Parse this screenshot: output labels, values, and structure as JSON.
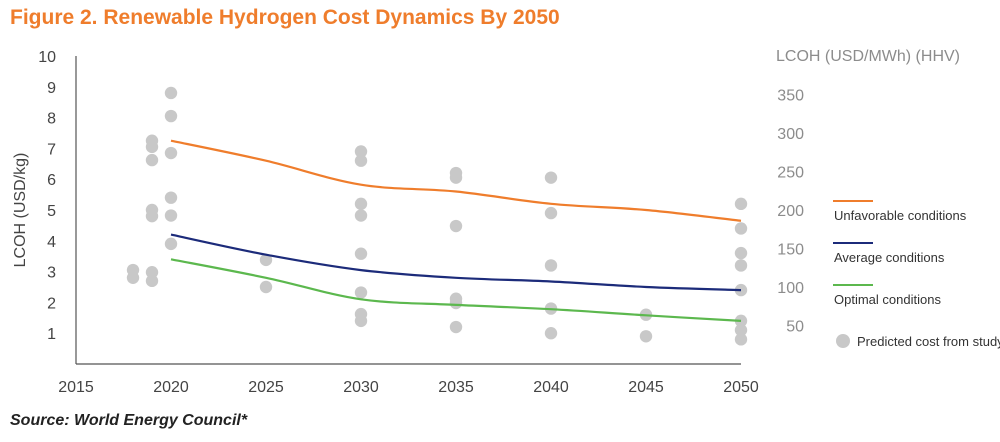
{
  "figure": {
    "title": "Figure 2. Renewable Hydrogen Cost Dynamics By 2050",
    "source": "Source: World Energy Council*"
  },
  "chart_data": {
    "type": "line",
    "title": "Figure 2. Renewable Hydrogen Cost Dynamics By 2050",
    "xlabel": "",
    "ylabel": "LCOH (USD/kg)",
    "y2label": "LCOH (USD/MWh) (HHV)",
    "xlim": [
      2015,
      2050
    ],
    "ylim": [
      0,
      10
    ],
    "y2lim": [
      0,
      400
    ],
    "x_ticks": [
      2015,
      2020,
      2025,
      2030,
      2035,
      2040,
      2045,
      2050
    ],
    "y_ticks": [
      1,
      2,
      3,
      4,
      5,
      6,
      7,
      8,
      9,
      10
    ],
    "y2_ticks": [
      50,
      100,
      150,
      200,
      250,
      300,
      350
    ],
    "grid": false,
    "legend_position": "right",
    "series": [
      {
        "name": "Unfavorable conditions",
        "color": "#ef7d2c",
        "x": [
          2020,
          2025,
          2030,
          2035,
          2040,
          2045,
          2050
        ],
        "values": [
          7.25,
          6.6,
          5.82,
          5.6,
          5.2,
          5.0,
          4.65
        ]
      },
      {
        "name": "Average conditions",
        "color": "#1c2b7a",
        "x": [
          2020,
          2025,
          2030,
          2035,
          2040,
          2045,
          2050
        ],
        "values": [
          4.2,
          3.55,
          3.05,
          2.8,
          2.68,
          2.5,
          2.4
        ]
      },
      {
        "name": "Optimal conditions",
        "color": "#5cb84e",
        "x": [
          2020,
          2025,
          2030,
          2035,
          2040,
          2045,
          2050
        ],
        "values": [
          3.4,
          2.8,
          2.1,
          1.92,
          1.78,
          1.58,
          1.4
        ]
      }
    ],
    "scatter": {
      "name": "Predicted cost from study",
      "color": "#c8c8c8",
      "points": [
        [
          2018,
          3.05
        ],
        [
          2018,
          2.8
        ],
        [
          2019,
          7.25
        ],
        [
          2019,
          7.05
        ],
        [
          2019,
          6.62
        ],
        [
          2019,
          5.0
        ],
        [
          2019,
          4.8
        ],
        [
          2019,
          2.98
        ],
        [
          2019,
          2.7
        ],
        [
          2020,
          8.8
        ],
        [
          2020,
          8.05
        ],
        [
          2020,
          6.85
        ],
        [
          2020,
          5.4
        ],
        [
          2020,
          4.82
        ],
        [
          2020,
          3.9
        ],
        [
          2025,
          3.38
        ],
        [
          2025,
          2.5
        ],
        [
          2030,
          6.9
        ],
        [
          2030,
          6.6
        ],
        [
          2030,
          5.2
        ],
        [
          2030,
          4.82
        ],
        [
          2030,
          3.58
        ],
        [
          2030,
          2.32
        ],
        [
          2030,
          1.62
        ],
        [
          2030,
          1.4
        ],
        [
          2035,
          6.2
        ],
        [
          2035,
          6.05
        ],
        [
          2035,
          4.48
        ],
        [
          2035,
          2.12
        ],
        [
          2035,
          1.98
        ],
        [
          2035,
          1.2
        ],
        [
          2040,
          6.05
        ],
        [
          2040,
          4.9
        ],
        [
          2040,
          3.2
        ],
        [
          2040,
          1.8
        ],
        [
          2040,
          1.0
        ],
        [
          2045,
          1.6
        ],
        [
          2045,
          0.9
        ],
        [
          2050,
          5.2
        ],
        [
          2050,
          4.4
        ],
        [
          2050,
          3.6
        ],
        [
          2050,
          3.2
        ],
        [
          2050,
          2.4
        ],
        [
          2050,
          1.4
        ],
        [
          2050,
          1.1
        ],
        [
          2050,
          0.8
        ]
      ]
    }
  }
}
